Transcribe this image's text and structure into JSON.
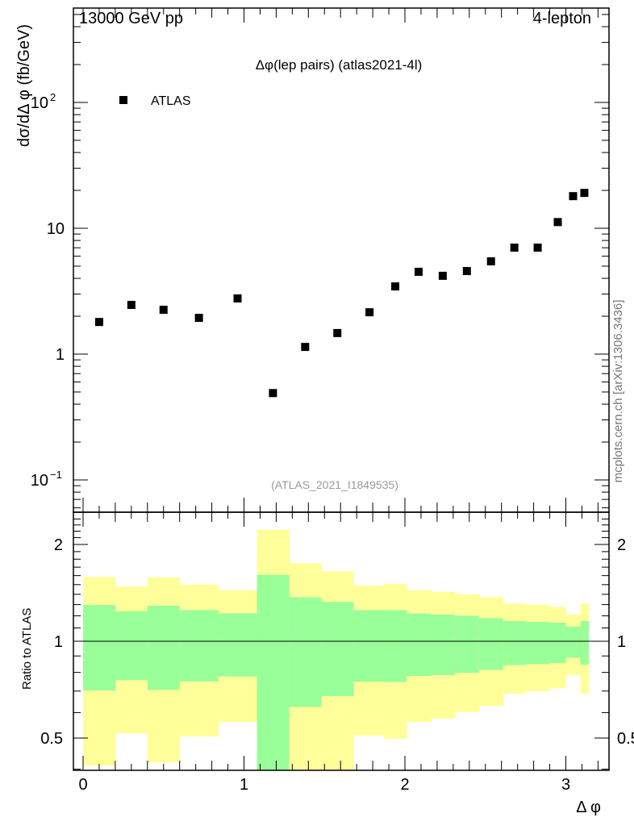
{
  "header": {
    "energy": "13000 GeV pp",
    "process": "4-lepton"
  },
  "side_note": "mcplots.cern.ch [arXiv:1306.3436]",
  "analysis_id": "(ATLAS_2021_I1849535)",
  "colors": {
    "yellow_band": "#ffff99",
    "green_band": "#99ff99",
    "marker": "#000000"
  },
  "chart_data": [
    {
      "type": "scatter",
      "title": "Δφ(lep pairs) (atlas2021-4l)",
      "xlabel": "Δ φ",
      "ylabel": "dσ/dΔ φ (fb/GeV)",
      "yscale": "log",
      "xlim": [
        -0.06,
        3.27
      ],
      "ylim": [
        0.058,
        560
      ],
      "legend": {
        "position": "top-left",
        "entries": [
          "ATLAS"
        ]
      },
      "ytick_labels": [
        {
          "v": 0.1,
          "base": "10",
          "exp": "−1"
        },
        {
          "v": 1,
          "base": "1",
          "exp": ""
        },
        {
          "v": 10,
          "base": "10",
          "exp": ""
        },
        {
          "v": 100,
          "base": "10",
          "exp": "2"
        }
      ],
      "series": [
        {
          "name": "ATLAS",
          "x": [
            0.1,
            0.3,
            0.5,
            0.72,
            0.96,
            1.18,
            1.38,
            1.58,
            1.78,
            1.94,
            2.085,
            2.235,
            2.385,
            2.535,
            2.68,
            2.825,
            2.95,
            3.045,
            3.115
          ],
          "y": [
            1.8,
            2.46,
            2.25,
            1.94,
            2.77,
            0.49,
            1.14,
            1.47,
            2.15,
            3.45,
            4.51,
            4.19,
            4.57,
            5.46,
            7.02,
            7.02,
            11.2,
            18.0,
            19.1
          ]
        }
      ]
    },
    {
      "type": "area",
      "ylabel": "Ratio to ATLAS",
      "yscale": "log",
      "ylim": [
        0.4,
        2.49
      ],
      "xlim": [
        -0.06,
        3.27
      ],
      "xtick_labels": [
        "0",
        "1",
        "2",
        "3"
      ],
      "ytick_labels": [
        "0.5",
        "1",
        "2"
      ],
      "bin_edges": [
        0,
        0.2,
        0.4,
        0.6,
        0.84,
        1.08,
        1.28,
        1.48,
        1.68,
        1.87,
        2.01,
        2.16,
        2.31,
        2.46,
        2.61,
        2.75,
        2.9,
        3.0,
        3.09,
        3.14
      ],
      "yellow_upper": [
        1.585,
        1.48,
        1.58,
        1.5,
        1.44,
        2.22,
        1.75,
        1.65,
        1.49,
        1.51,
        1.44,
        1.425,
        1.4,
        1.37,
        1.31,
        1.3,
        1.28,
        1.21,
        1.31
      ],
      "green_upper": [
        1.297,
        1.24,
        1.29,
        1.25,
        1.22,
        1.61,
        1.37,
        1.325,
        1.25,
        1.25,
        1.22,
        1.21,
        1.2,
        1.18,
        1.155,
        1.149,
        1.142,
        1.11,
        1.155
      ],
      "green_lower": [
        0.703,
        0.757,
        0.706,
        0.75,
        0.777,
        0.3,
        0.625,
        0.675,
        0.749,
        0.746,
        0.78,
        0.785,
        0.798,
        0.814,
        0.843,
        0.849,
        0.856,
        0.889,
        0.845
      ],
      "yellow_lower": [
        0.411,
        0.517,
        0.42,
        0.506,
        0.561,
        0.3,
        0.3,
        0.3,
        0.509,
        0.497,
        0.561,
        0.575,
        0.602,
        0.63,
        0.687,
        0.699,
        0.714,
        0.786,
        0.687
      ],
      "reference_line": 1
    }
  ]
}
